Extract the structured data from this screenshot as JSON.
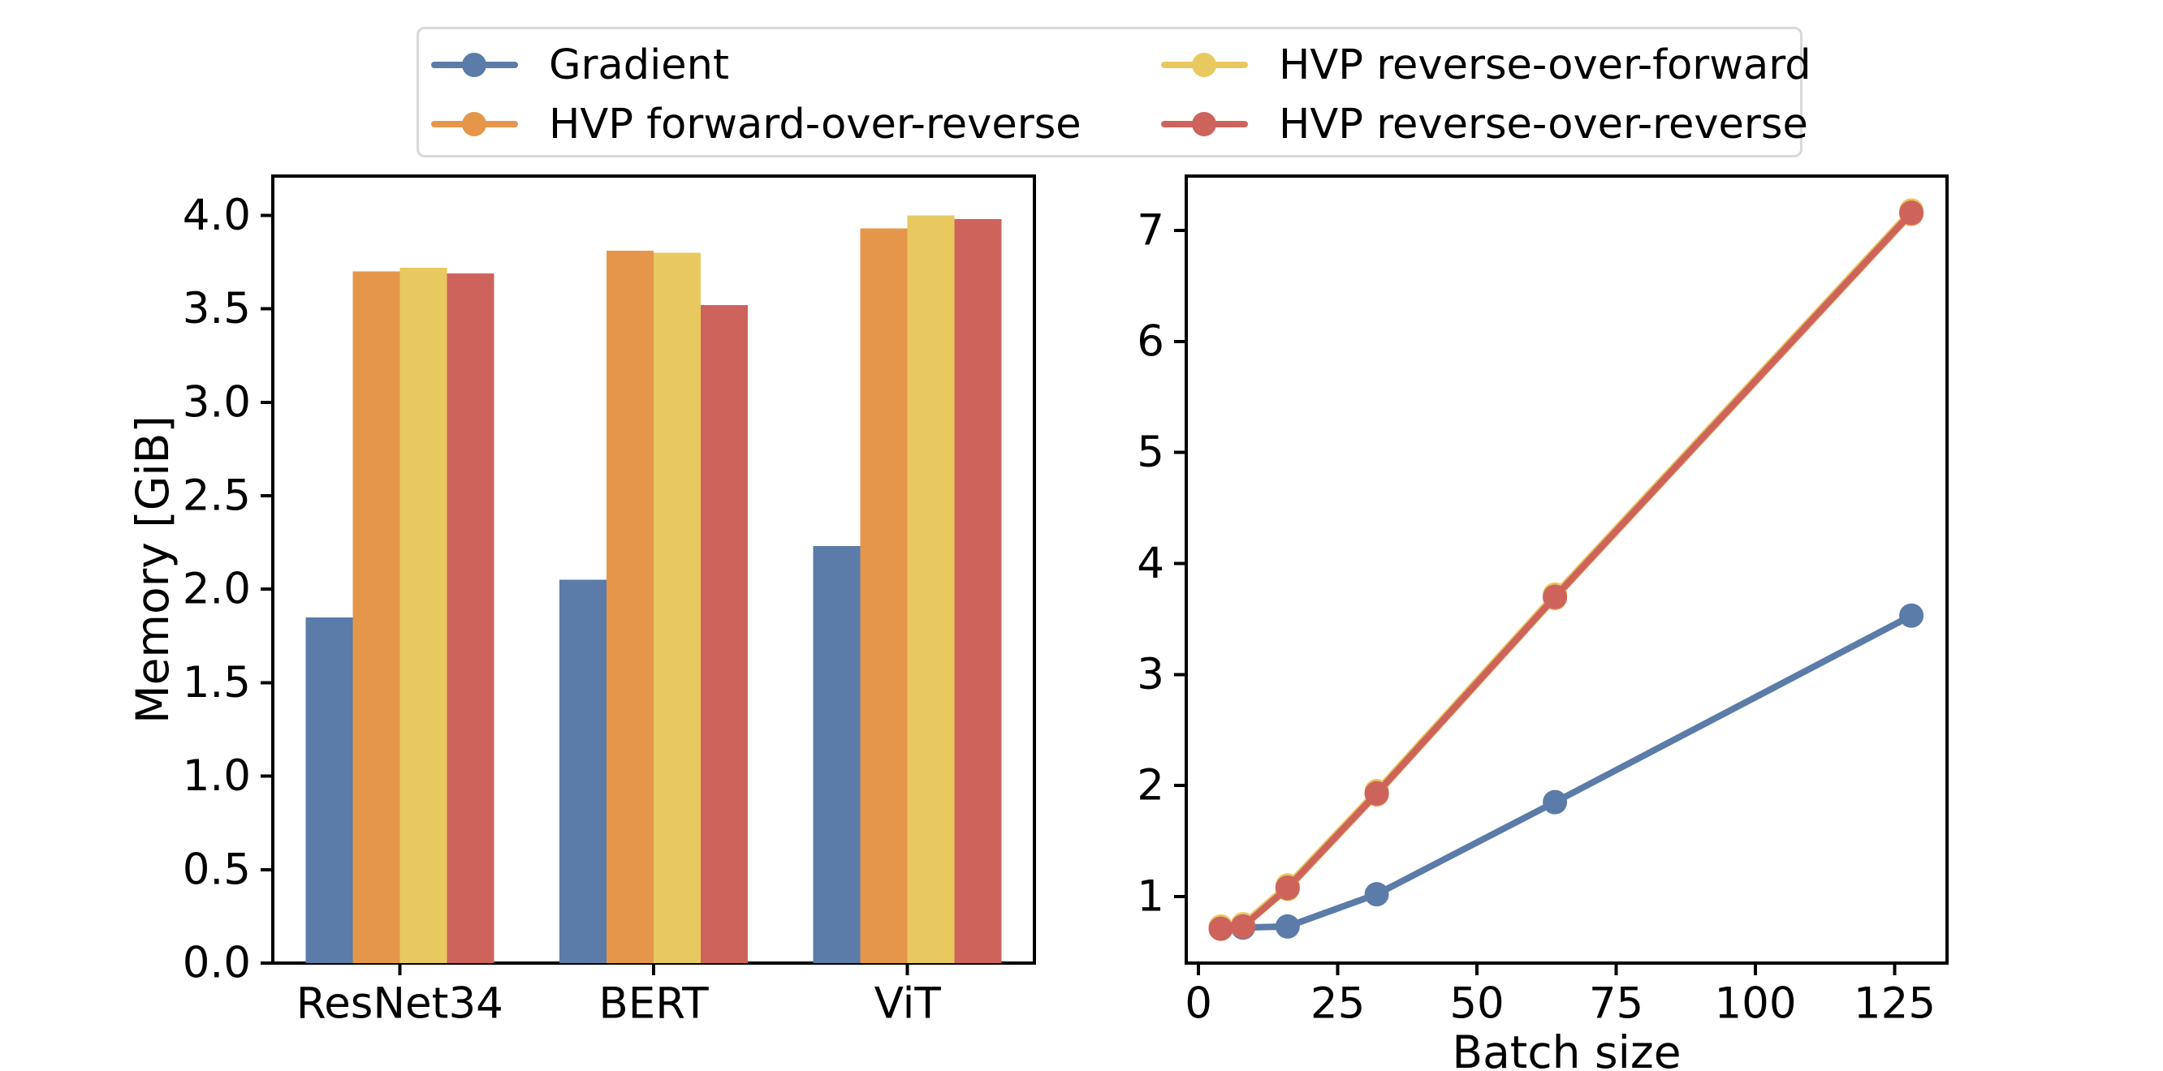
{
  "figure": {
    "background": "#ffffff"
  },
  "palette": {
    "gradient_blue": "#5B7BA8",
    "hvp_forward_over_reverse_orange": "#E6964A",
    "hvp_reverse_over_forward_yellow": "#E8C95F",
    "hvp_reverse_over_reverse_red": "#CE635C",
    "spine_black": "#000000",
    "legend_border_gray": "#d9d9d9"
  },
  "legend": {
    "items": [
      {
        "label": "Gradient",
        "color": "#5B7BA8"
      },
      {
        "label": "HVP forward-over-reverse",
        "color": "#E6964A"
      },
      {
        "label": "HVP reverse-over-forward",
        "color": "#E8C95F"
      },
      {
        "label": "HVP reverse-over-reverse",
        "color": "#CE635C"
      }
    ]
  },
  "chart_data": [
    {
      "type": "bar",
      "title": "",
      "xlabel": "",
      "ylabel": "Memory [GiB]",
      "categories": [
        "ResNet34",
        "BERT",
        "ViT"
      ],
      "series": [
        {
          "name": "Gradient",
          "color": "#5B7BA8",
          "values": [
            1.85,
            2.05,
            2.23
          ]
        },
        {
          "name": "HVP forward-over-reverse",
          "color": "#E6964A",
          "values": [
            3.7,
            3.81,
            3.93
          ]
        },
        {
          "name": "HVP reverse-over-forward",
          "color": "#E8C95F",
          "values": [
            3.72,
            3.8,
            4.0
          ]
        },
        {
          "name": "HVP reverse-over-reverse",
          "color": "#CE635C",
          "values": [
            3.69,
            3.52,
            3.98
          ]
        }
      ],
      "ylim": [
        0,
        4.21
      ],
      "yticks": [
        0.0,
        0.5,
        1.0,
        1.5,
        2.0,
        2.5,
        3.0,
        3.5,
        4.0
      ],
      "ytick_labels": [
        "0.0",
        "0.5",
        "1.0",
        "1.5",
        "2.0",
        "2.5",
        "3.0",
        "3.5",
        "4.0"
      ],
      "grid": false,
      "legend_position": "upper center (figure)"
    },
    {
      "type": "line",
      "title": "",
      "xlabel": "Batch size",
      "ylabel": "",
      "x": [
        4,
        8,
        16,
        32,
        64,
        128
      ],
      "series": [
        {
          "name": "Gradient",
          "color": "#5B7BA8",
          "values": [
            0.72,
            0.72,
            0.73,
            1.02,
            1.85,
            3.53
          ]
        },
        {
          "name": "HVP forward-over-reverse",
          "color": "#E6964A",
          "values": [
            0.71,
            0.73,
            1.07,
            1.92,
            3.69,
            7.15
          ]
        },
        {
          "name": "HVP reverse-over-forward",
          "color": "#E8C95F",
          "values": [
            0.73,
            0.75,
            1.1,
            1.95,
            3.72,
            7.18
          ]
        },
        {
          "name": "HVP reverse-over-reverse",
          "color": "#CE635C",
          "values": [
            0.71,
            0.73,
            1.08,
            1.93,
            3.7,
            7.16
          ]
        }
      ],
      "xlim": [
        -2.2,
        134.4
      ],
      "ylim": [
        0.4,
        7.49
      ],
      "xticks": [
        0,
        25,
        50,
        75,
        100,
        125
      ],
      "xtick_labels": [
        "0",
        "25",
        "50",
        "75",
        "100",
        "125"
      ],
      "yticks": [
        1,
        2,
        3,
        4,
        5,
        6,
        7
      ],
      "ytick_labels": [
        "1",
        "2",
        "3",
        "4",
        "5",
        "6",
        "7"
      ],
      "grid": false,
      "marker": "circle"
    }
  ]
}
